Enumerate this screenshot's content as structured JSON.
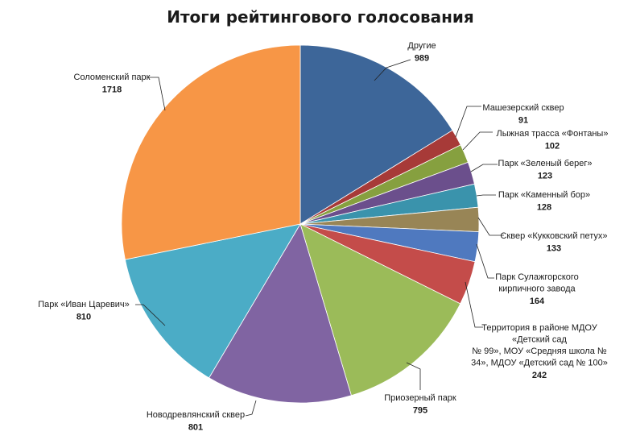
{
  "chart_data": {
    "type": "pie",
    "title": "Итоги рейтингового голосования",
    "slices": [
      {
        "name": [
          "Другие"
        ],
        "value": 989,
        "color": "#3d6699"
      },
      {
        "name": [
          "Машезерский сквер"
        ],
        "value": 91,
        "color": "#a73a38"
      },
      {
        "name": [
          "Лыжная трасса «Фонтаны»"
        ],
        "value": 102,
        "color": "#86a03f"
      },
      {
        "name": [
          "Парк «Зеленый берег»"
        ],
        "value": 123,
        "color": "#6b4f8c"
      },
      {
        "name": [
          "Парк «Каменный бор»"
        ],
        "value": 128,
        "color": "#3a93ac"
      },
      {
        "name": [
          "Сквер «Кукковский петух»"
        ],
        "value": 133,
        "color": "#988556"
      },
      {
        "name": [
          "Парк Сулажгорского",
          "кирпичного завода"
        ],
        "value": 164,
        "color": "#4f79bf"
      },
      {
        "name": [
          "Территория в районе МДОУ",
          "«Детский сад",
          "№ 99», МОУ «Средняя школа №",
          "34», МДОУ «Детский сад № 100»"
        ],
        "value": 242,
        "color": "#c44c4a"
      },
      {
        "name": [
          "Приозерный парк"
        ],
        "value": 795,
        "color": "#9bbb59"
      },
      {
        "name": [
          "Новодревлянский сквер"
        ],
        "value": 801,
        "color": "#8064a2"
      },
      {
        "name": [
          "Парк «Иван Царевич»"
        ],
        "value": 810,
        "color": "#4bacc6"
      },
      {
        "name": [
          "Соломенский парк"
        ],
        "value": 1718,
        "color": "#f79646"
      }
    ]
  }
}
